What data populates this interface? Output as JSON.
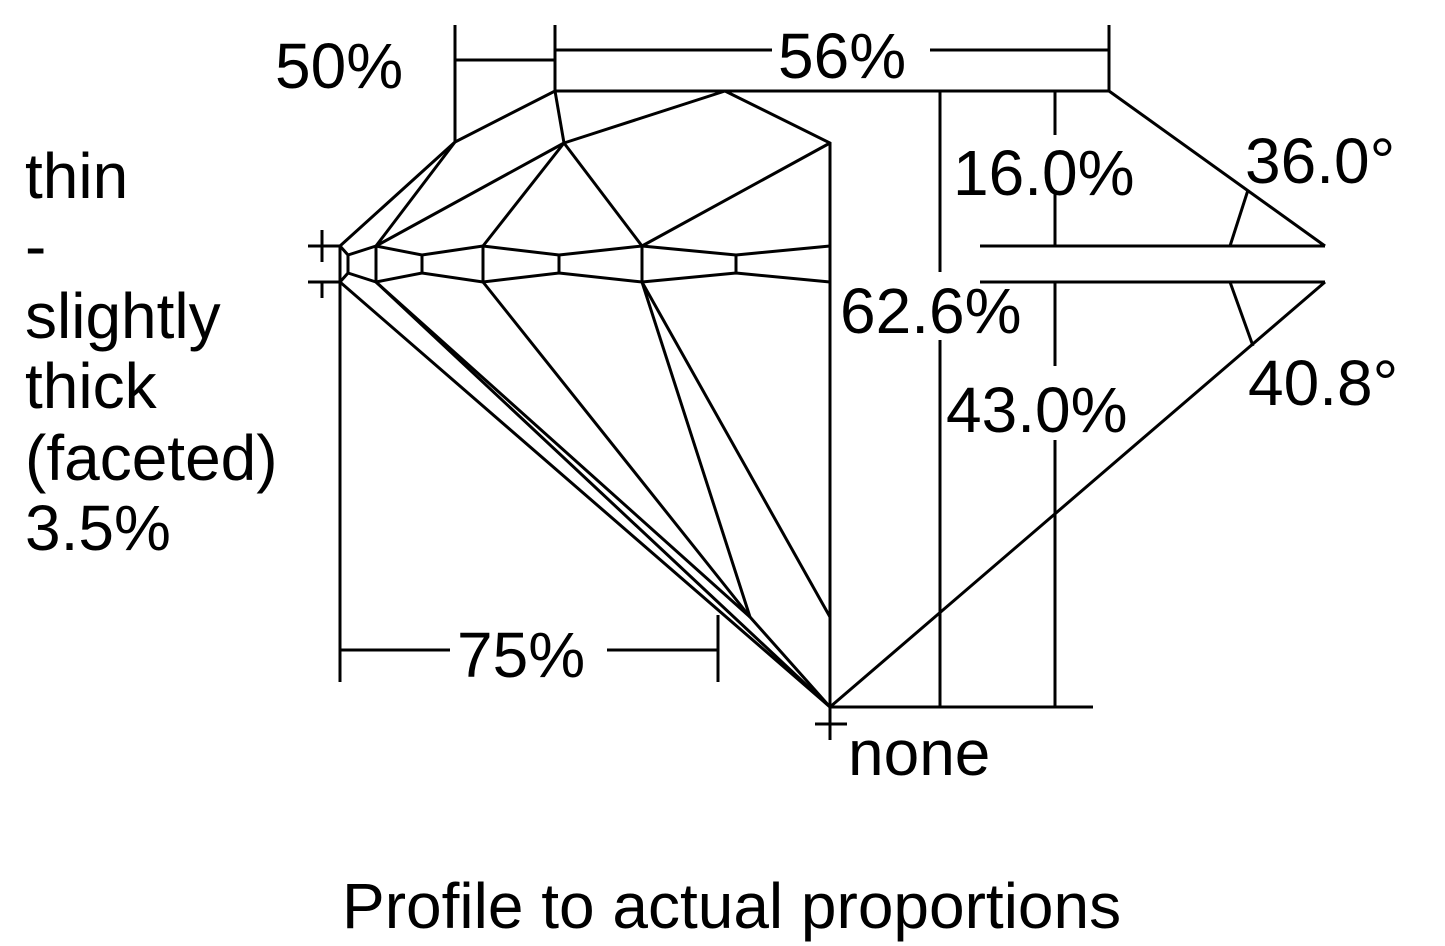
{
  "diagram": {
    "title": "Profile to actual proportions",
    "line_color": "#000000",
    "background": "#ffffff",
    "girdle_label": [
      "thin",
      "-",
      "slightly",
      "thick",
      "(faceted)",
      "3.5%"
    ],
    "star_length": "50%",
    "table": "56%",
    "crown_height": "16.0%",
    "crown_angle": "36.0°",
    "total_depth": "62.6%",
    "pavilion_angle": "40.8°",
    "pavilion_depth": "43.0%",
    "lower_half_length": "75%",
    "culet": "none"
  }
}
